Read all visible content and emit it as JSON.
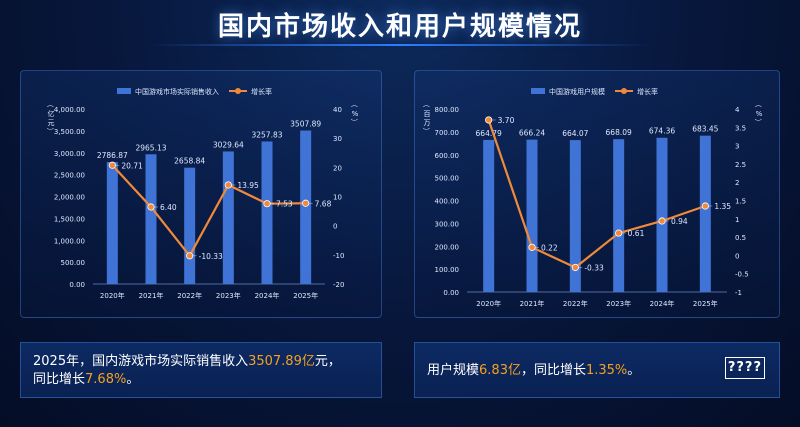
{
  "page": {
    "title": "国内市场收入和用户规模情况",
    "colors": {
      "bar": "#3f73d6",
      "line": "#f08a3a",
      "highlight": "#f5a020"
    }
  },
  "summary_left": {
    "line1_pre": "2025年，国内游戏市场实际销售收入",
    "line1_value": "3507.89亿",
    "line1_post": "元，",
    "line2_pre": "同比增长",
    "line2_value": "7.68%",
    "line2_post": "。"
  },
  "summary_right": {
    "pre": "用户规模",
    "value1": "6.83亿",
    "mid": "，同比增长",
    "value2": "1.35%",
    "post": "。",
    "tag": "????"
  },
  "chart_data": [
    {
      "type": "bar",
      "combo_line": true,
      "categories": [
        "2020年",
        "2021年",
        "2022年",
        "2023年",
        "2024年",
        "2025年"
      ],
      "series": [
        {
          "name": "中国游戏市场实际销售收入",
          "type": "bar",
          "axis": "left",
          "values": [
            2786.87,
            2965.13,
            2658.84,
            3029.64,
            3257.83,
            3507.89
          ],
          "labels": [
            "2786.87",
            "2965.13",
            "2658.84",
            "3029.64",
            "3257.83",
            "3507.89"
          ]
        },
        {
          "name": "增长率",
          "type": "line",
          "axis": "right",
          "values": [
            20.71,
            6.4,
            -10.33,
            13.95,
            7.53,
            7.68
          ],
          "labels": [
            "20.71",
            "6.40",
            "-10.33",
            "13.95",
            "7.53",
            "7.68"
          ]
        }
      ],
      "ylabel_left": "（亿元）",
      "ylabel_right": "（%）",
      "ylim_left": [
        0,
        4000
      ],
      "left_ticks": [
        "0.00",
        "500.00",
        "1,000.00",
        "1,500.00",
        "2,000.00",
        "2,500.00",
        "3,000.00",
        "3,500.00",
        "4,000.00"
      ],
      "ylim_right": [
        -20,
        40
      ],
      "right_ticks": [
        "-20",
        "-10",
        "0",
        "10",
        "20",
        "30",
        "40"
      ],
      "legend": "top",
      "grid": false
    },
    {
      "type": "bar",
      "combo_line": true,
      "categories": [
        "2020年",
        "2021年",
        "2022年",
        "2023年",
        "2024年",
        "2025年"
      ],
      "series": [
        {
          "name": "中国游戏用户规模",
          "type": "bar",
          "axis": "left",
          "values": [
            664.79,
            666.24,
            664.07,
            668.09,
            674.36,
            683.45
          ],
          "labels": [
            "664.79",
            "666.24",
            "664.07",
            "668.09",
            "674.36",
            "683.45"
          ]
        },
        {
          "name": "增长率",
          "type": "line",
          "axis": "right",
          "values": [
            3.7,
            0.22,
            -0.33,
            0.61,
            0.94,
            1.35
          ],
          "labels": [
            "3.70",
            "0.22",
            "-0.33",
            "0.61",
            "0.94",
            "1.35"
          ]
        }
      ],
      "ylabel_left": "（百万）",
      "ylabel_right": "（%）",
      "ylim_left": [
        0,
        800
      ],
      "left_ticks": [
        "0.00",
        "100.00",
        "200.00",
        "300.00",
        "400.00",
        "500.00",
        "600.00",
        "700.00",
        "800.00"
      ],
      "ylim_right": [
        -1,
        4
      ],
      "right_ticks": [
        "-1",
        "-0.5",
        "0",
        "0.5",
        "1",
        "1.5",
        "2",
        "2.5",
        "3",
        "3.5",
        "4"
      ],
      "legend": "top",
      "grid": false
    }
  ]
}
